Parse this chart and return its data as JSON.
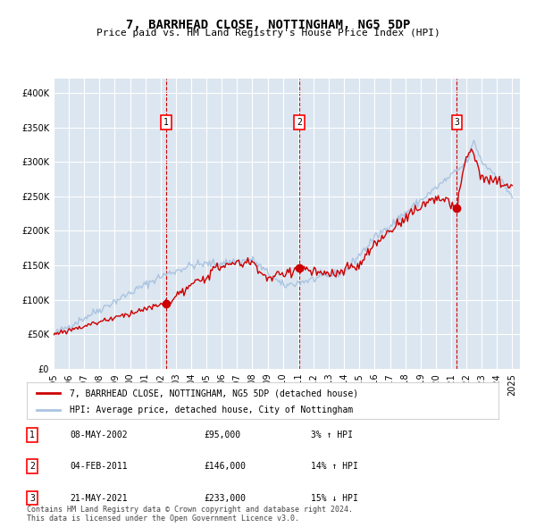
{
  "title": "7, BARRHEAD CLOSE, NOTTINGHAM, NG5 5DP",
  "subtitle": "Price paid vs. HM Land Registry's House Price Index (HPI)",
  "bg_color": "#dce6f0",
  "plot_bg_color": "#dce6f0",
  "hpi_line_color": "#aac4e0",
  "price_line_color": "#cc0000",
  "marker_color": "#cc0000",
  "xlabel": "",
  "ylabel": "",
  "ylim": [
    0,
    420000
  ],
  "yticks": [
    0,
    50000,
    100000,
    150000,
    200000,
    250000,
    300000,
    350000,
    400000
  ],
  "ytick_labels": [
    "£0",
    "£50K",
    "£100K",
    "£150K",
    "£200K",
    "£250K",
    "£300K",
    "£350K",
    "£400K"
  ],
  "xlim_start": 1995.0,
  "xlim_end": 2025.5,
  "xticks": [
    1995,
    1996,
    1997,
    1998,
    1999,
    2000,
    2001,
    2002,
    2003,
    2004,
    2005,
    2006,
    2007,
    2008,
    2009,
    2010,
    2011,
    2012,
    2013,
    2014,
    2015,
    2016,
    2017,
    2018,
    2019,
    2020,
    2021,
    2022,
    2023,
    2024,
    2025
  ],
  "sale_dates": [
    2002.35,
    2011.08,
    2021.38
  ],
  "sale_prices": [
    95000,
    146000,
    233000
  ],
  "sale_labels": [
    "1",
    "2",
    "3"
  ],
  "legend_line1": "7, BARRHEAD CLOSE, NOTTINGHAM, NG5 5DP (detached house)",
  "legend_line2": "HPI: Average price, detached house, City of Nottingham",
  "table_rows": [
    {
      "num": "1",
      "date": "08-MAY-2002",
      "price": "£95,000",
      "hpi": "3% ↑ HPI"
    },
    {
      "num": "2",
      "date": "04-FEB-2011",
      "price": "£146,000",
      "hpi": "14% ↑ HPI"
    },
    {
      "num": "3",
      "date": "21-MAY-2021",
      "price": "£233,000",
      "hpi": "15% ↓ HPI"
    }
  ],
  "footer": "Contains HM Land Registry data © Crown copyright and database right 2024.\nThis data is licensed under the Open Government Licence v3.0."
}
